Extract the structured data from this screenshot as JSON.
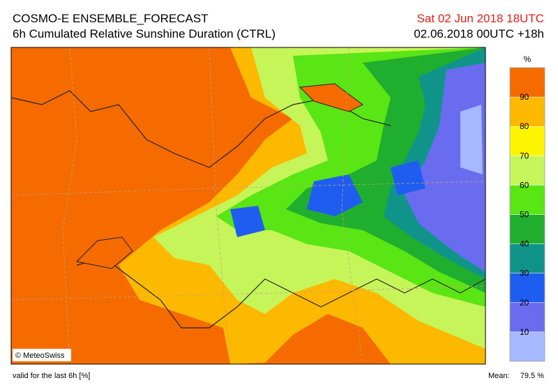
{
  "header": {
    "title": "COSMO-E ENSEMBLE_FORECAST",
    "subtitle": "6h Cumulated Relative Sunshine Duration (CTRL)",
    "valid_time": "Sat 02 Jun 2018 18UTC",
    "run": "02.06.2018 00UTC +18h"
  },
  "colorbar": {
    "unit": "%",
    "ticks": [
      10,
      20,
      30,
      40,
      50,
      60,
      70,
      80,
      90
    ],
    "colors": [
      "#a6b8ff",
      "#6a6cf0",
      "#1f5df0",
      "#10948a",
      "#1fae2e",
      "#5ae514",
      "#c6f55a",
      "#fdf500",
      "#fdb800",
      "#f56b00"
    ]
  },
  "map": {
    "copyright": "© MeteoSwiss"
  },
  "footer": {
    "note": "valid for the last 6h [%]",
    "mean_label": "Mean:",
    "mean_value": "79.5 %"
  }
}
